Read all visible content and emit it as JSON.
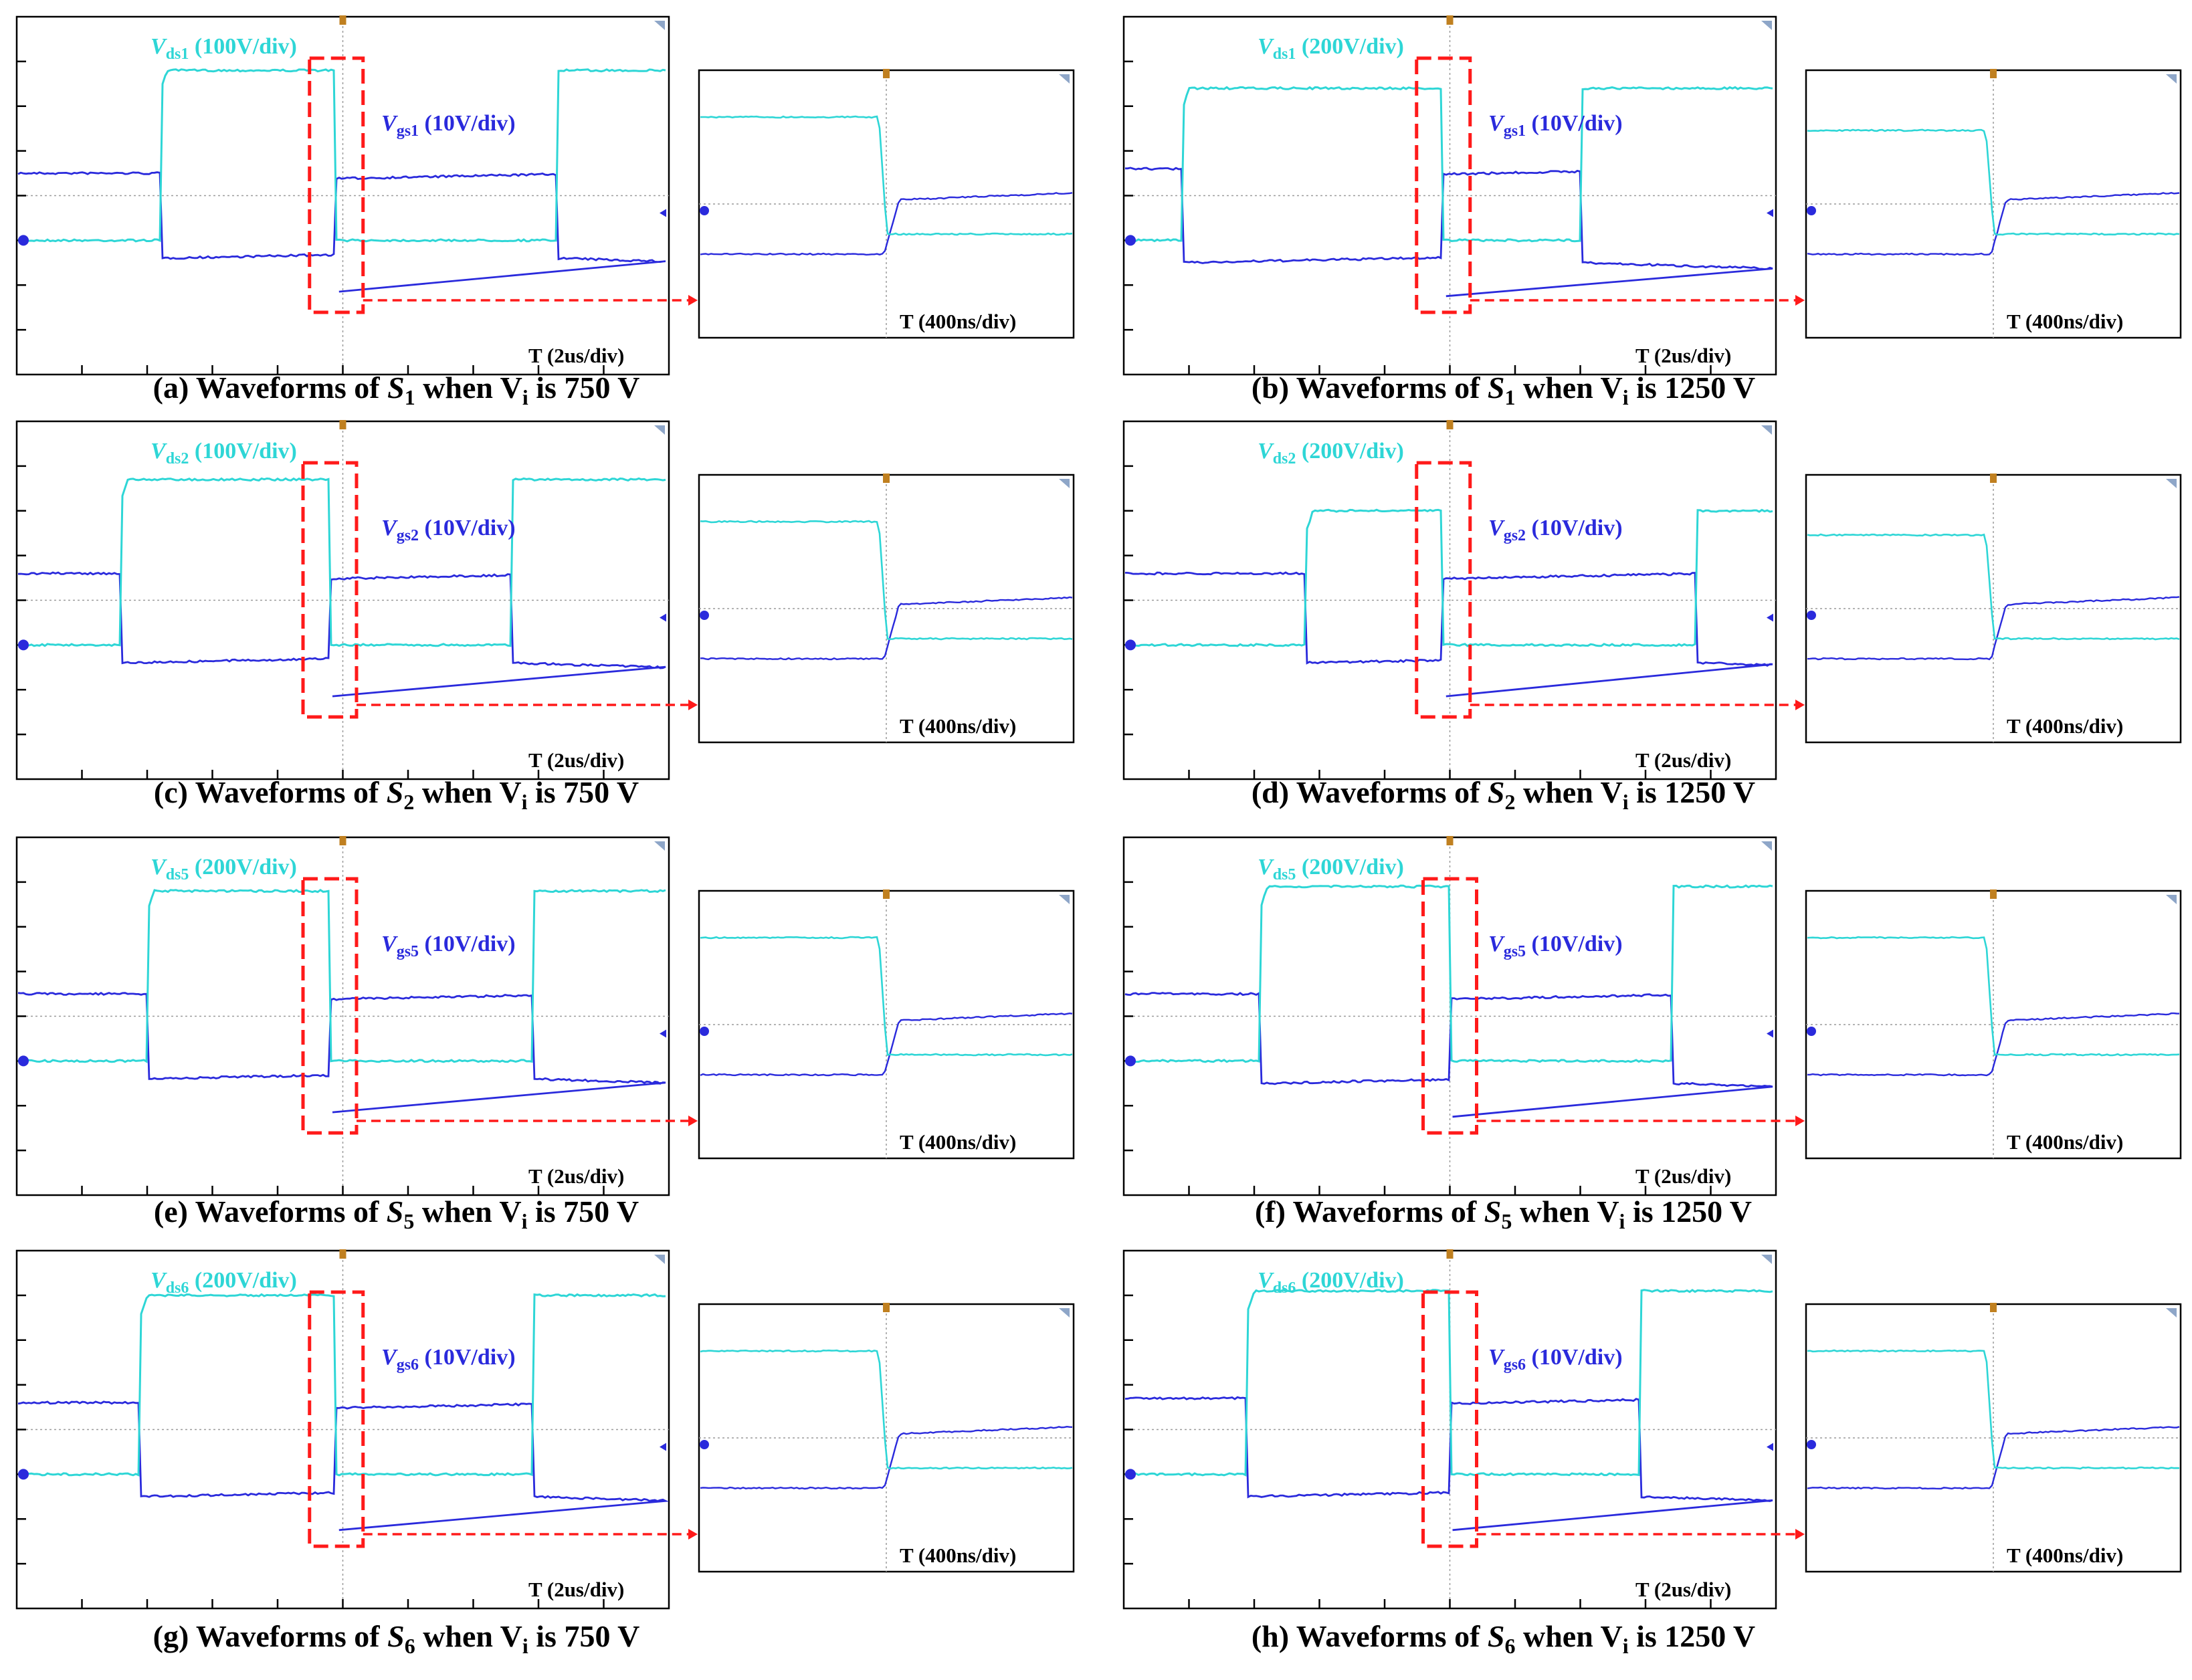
{
  "figure": {
    "overview": "Experimental switching waveforms"
  },
  "colors": {
    "vds": "#2ED6D6",
    "vgs": "#2A2ADC",
    "highlight": "#FF1A1A",
    "grid": "#9A9A9A",
    "marker": "#C08020"
  },
  "chart_data": [
    {
      "type": "line",
      "panel": "a",
      "caption": {
        "prefix": "(a) Waveforms of ",
        "switch": "S",
        "switch_sub": "1",
        "mid": " when V",
        "vi_sub": "i",
        "suffix": " is 750 V"
      },
      "vds_label": {
        "sym": "V",
        "sub": "ds1",
        "scale": "(100V/div)"
      },
      "vgs_label": {
        "sym": "V",
        "sub": "gs1",
        "scale": "(10V/div)"
      },
      "time_label": "T",
      "time_scale": "(2us/div)",
      "zoom_time_label": "T",
      "zoom_time_scale": "(400ns/div)",
      "x_div": [
        0,
        10
      ],
      "y_div": [
        -4,
        4
      ],
      "vds_levels_div": {
        "low": -1,
        "high": 2.8
      },
      "vgs_levels_div": {
        "high": 0.5,
        "low": -1.4
      },
      "switching_edges_div": {
        "vds_rise": 2.2,
        "vds_fall": 4.9,
        "vds_rise2": 8.3
      }
    },
    {
      "type": "line",
      "panel": "b",
      "caption": {
        "prefix": "(b) Waveforms of ",
        "switch": "S",
        "switch_sub": "1",
        "mid": " when V",
        "vi_sub": "i",
        "suffix": " is 1250 V"
      },
      "vds_label": {
        "sym": "V",
        "sub": "ds1",
        "scale": "(200V/div)"
      },
      "vgs_label": {
        "sym": "V",
        "sub": "gs1",
        "scale": "(10V/div)"
      },
      "time_label": "T",
      "time_scale": "(2us/div)",
      "zoom_time_label": "T",
      "zoom_time_scale": "(400ns/div)",
      "x_div": [
        0,
        10
      ],
      "y_div": [
        -4,
        4
      ],
      "vds_levels_div": {
        "low": -1,
        "high": 2.4
      },
      "vgs_levels_div": {
        "high": 0.6,
        "low": -1.5
      },
      "switching_edges_div": {
        "vds_rise": 0.9,
        "vds_fall": 4.9,
        "vds_rise2": 7.0
      }
    },
    {
      "type": "line",
      "panel": "c",
      "caption": {
        "prefix": "(c) Waveforms of ",
        "switch": "S",
        "switch_sub": "2",
        "mid": " when V",
        "vi_sub": "i",
        "suffix": " is 750 V"
      },
      "vds_label": {
        "sym": "V",
        "sub": "ds2",
        "scale": "(100V/div)"
      },
      "vgs_label": {
        "sym": "V",
        "sub": "gs2",
        "scale": "(10V/div)"
      },
      "time_label": "T",
      "time_scale": "(2us/div)",
      "zoom_time_label": "T",
      "zoom_time_scale": "(400ns/div)",
      "x_div": [
        0,
        10
      ],
      "y_div": [
        -4,
        4
      ],
      "vds_levels_div": {
        "low": -1,
        "high": 2.7
      },
      "vgs_levels_div": {
        "high": 0.6,
        "low": -1.4
      },
      "switching_edges_div": {
        "vds_rise": 1.6,
        "vds_fall": 4.8,
        "vds_rise2": 7.6
      }
    },
    {
      "type": "line",
      "panel": "d",
      "caption": {
        "prefix": "(d) Waveforms of ",
        "switch": "S",
        "switch_sub": "2",
        "mid": " when V",
        "vi_sub": "i",
        "suffix": " is 1250 V"
      },
      "vds_label": {
        "sym": "V",
        "sub": "ds2",
        "scale": "(200V/div)"
      },
      "vgs_label": {
        "sym": "V",
        "sub": "gs2",
        "scale": "(10V/div)"
      },
      "time_label": "T",
      "time_scale": "(2us/div)",
      "zoom_time_label": "T",
      "zoom_time_scale": "(400ns/div)",
      "x_div": [
        0,
        10
      ],
      "y_div": [
        -4,
        4
      ],
      "vds_levels_div": {
        "low": -1,
        "high": 2.0
      },
      "vgs_levels_div": {
        "high": 0.6,
        "low": -1.4
      },
      "switching_edges_div": {
        "vds_rise": 2.8,
        "vds_fall": 4.9,
        "vds_rise2": 8.8
      }
    },
    {
      "type": "line",
      "panel": "e",
      "caption": {
        "prefix": "(e) Waveforms of ",
        "switch": "S",
        "switch_sub": "5",
        "mid": " when V",
        "vi_sub": "i",
        "suffix": " is 750 V"
      },
      "vds_label": {
        "sym": "V",
        "sub": "ds5",
        "scale": "(200V/div)"
      },
      "vgs_label": {
        "sym": "V",
        "sub": "gs5",
        "scale": "(10V/div)"
      },
      "time_label": "T",
      "time_scale": "(2us/div)",
      "zoom_time_label": "T",
      "zoom_time_scale": "(400ns/div)",
      "x_div": [
        0,
        10
      ],
      "y_div": [
        -4,
        4
      ],
      "vds_levels_div": {
        "low": -1,
        "high": 2.8
      },
      "vgs_levels_div": {
        "high": 0.5,
        "low": -1.4
      },
      "switching_edges_div": {
        "vds_rise": 2.0,
        "vds_fall": 4.8,
        "vds_rise2": 7.9
      }
    },
    {
      "type": "line",
      "panel": "f",
      "caption": {
        "prefix": "(f) Waveforms of ",
        "switch": "S",
        "switch_sub": "5",
        "mid": " when V",
        "vi_sub": "i",
        "suffix": " is 1250 V"
      },
      "vds_label": {
        "sym": "V",
        "sub": "ds5",
        "scale": "(200V/div)"
      },
      "vgs_label": {
        "sym": "V",
        "sub": "gs5",
        "scale": "(10V/div)"
      },
      "time_label": "T",
      "time_scale": "(2us/div)",
      "zoom_time_label": "T",
      "zoom_time_scale": "(400ns/div)",
      "x_div": [
        0,
        10
      ],
      "y_div": [
        -4,
        4
      ],
      "vds_levels_div": {
        "low": -1,
        "high": 2.9
      },
      "vgs_levels_div": {
        "high": 0.5,
        "low": -1.5
      },
      "switching_edges_div": {
        "vds_rise": 2.1,
        "vds_fall": 5.0,
        "vds_rise2": 8.4
      }
    },
    {
      "type": "line",
      "panel": "g",
      "caption": {
        "prefix": "(g) Waveforms of ",
        "switch": "S",
        "switch_sub": "6",
        "mid": " when V",
        "vi_sub": "i",
        "suffix": " is 750 V"
      },
      "vds_label": {
        "sym": "V",
        "sub": "ds6",
        "scale": "(200V/div)"
      },
      "vgs_label": {
        "sym": "V",
        "sub": "gs6",
        "scale": "(10V/div)"
      },
      "time_label": "T",
      "time_scale": "(2us/div)",
      "zoom_time_label": "T",
      "zoom_time_scale": "(400ns/div)",
      "x_div": [
        0,
        10
      ],
      "y_div": [
        -4,
        4
      ],
      "vds_levels_div": {
        "low": -1,
        "high": 3.0
      },
      "vgs_levels_div": {
        "high": 0.6,
        "low": -1.5
      },
      "switching_edges_div": {
        "vds_rise": 1.9,
        "vds_fall": 4.9,
        "vds_rise2": 7.9
      }
    },
    {
      "type": "line",
      "panel": "h",
      "caption": {
        "prefix": "(h) Waveforms of ",
        "switch": "S",
        "switch_sub": "6",
        "mid": " when V",
        "vi_sub": "i",
        "suffix": " is 1250 V"
      },
      "vds_label": {
        "sym": "V",
        "sub": "ds6",
        "scale": "(200V/div)"
      },
      "vgs_label": {
        "sym": "V",
        "sub": "gs6",
        "scale": "(10V/div)"
      },
      "time_label": "T",
      "time_scale": "(2us/div)",
      "zoom_time_label": "T",
      "zoom_time_scale": "(400ns/div)",
      "x_div": [
        0,
        10
      ],
      "y_div": [
        -4,
        4
      ],
      "vds_levels_div": {
        "low": -1,
        "high": 3.1
      },
      "vgs_levels_div": {
        "high": 0.7,
        "low": -1.5
      },
      "switching_edges_div": {
        "vds_rise": 1.9,
        "vds_fall": 5.0,
        "vds_rise2": 7.9
      }
    }
  ]
}
